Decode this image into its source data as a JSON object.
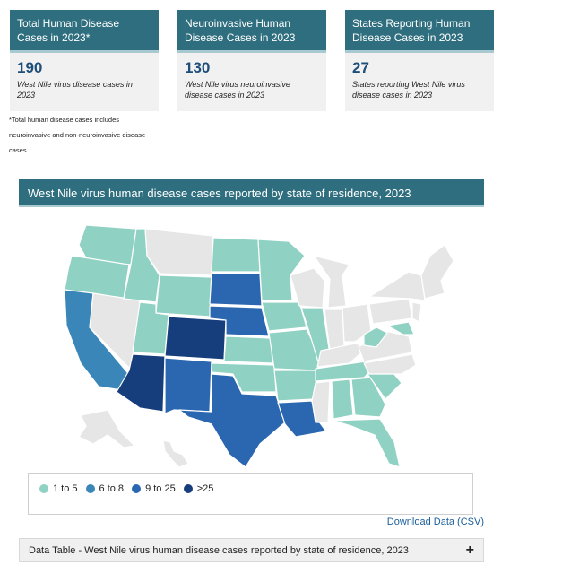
{
  "cards": [
    {
      "title": "Total Human Disease Cases in 2023*",
      "value": "190",
      "desc": "West Nile virus disease cases in 2023"
    },
    {
      "title": "Neuroinvasive Human Disease Cases in 2023",
      "value": "130",
      "desc": "West Nile virus neuroinvasive disease cases in 2023"
    },
    {
      "title": "States Reporting Human Disease Cases in 2023",
      "value": "27",
      "desc": "States reporting West Nile virus disease cases in 2023"
    }
  ],
  "footnote": "*Total human disease cases includes neuroinvasive and non-neuroinvasive disease cases.",
  "map": {
    "title": "West Nile virus human disease cases reported by state of residence, 2023",
    "colors": {
      "none": "#e6e6e6",
      "b1": "#8fd1c2",
      "b2": "#3a86b8",
      "b3": "#2b67b0",
      "b4": "#173e7c"
    }
  },
  "legend": [
    {
      "label": "1 to 5",
      "color": "#8fd1c2"
    },
    {
      "label": "6 to 8",
      "color": "#3a86b8"
    },
    {
      "label": "9 to 25",
      "color": "#2b67b0"
    },
    {
      "label": ">25",
      "color": "#173e7c"
    }
  ],
  "download_link": "Download Data (CSV)",
  "data_table_label": "Data Table - West Nile virus human disease cases reported by state of residence, 2023"
}
